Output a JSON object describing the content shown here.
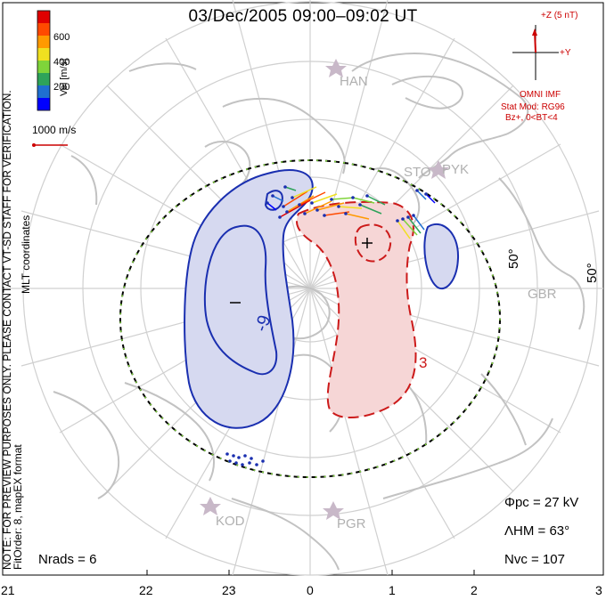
{
  "title": "03/Dec/2005 09:00–09:02 UT",
  "coordinates_label": "MLT coordinates",
  "colorbar": {
    "label": "Vel [m/s]",
    "ticks": [
      "600",
      "400",
      "200"
    ],
    "colors": [
      "#0000ff",
      "#1f6fd0",
      "#2ea35a",
      "#7fd43a",
      "#f0e020",
      "#ff9a00",
      "#ff4a00",
      "#e00000"
    ]
  },
  "reference_vector": {
    "label": "1000 m/s",
    "color": "#cc0000"
  },
  "mlt_labels": [
    "21",
    "22",
    "23",
    "0",
    "1",
    "2",
    "3"
  ],
  "latitude_labels": [
    "50°",
    "50°"
  ],
  "stations": [
    "HAN",
    "STO",
    "PYK",
    "GBR",
    "KOD",
    "PGR"
  ],
  "imf_panel": {
    "bz_label": "+Z (5 nT)",
    "by_label": "+Y",
    "source": "OMNI IMF",
    "model": "Stat Mod: RG96",
    "condition": "Bz+, 0<BT<4"
  },
  "contour_labels": {
    "negative": "-9",
    "positive": "3",
    "min_marker": "−",
    "max_marker": "+"
  },
  "stats": {
    "phi_pc": "Φpc = 27 kV",
    "lambda_hm": "ΛHM = 63°",
    "n_vc": "Nvc = 107",
    "n_rads": "Nrads = 6"
  },
  "note": "NOTE: FOR PREVIEW PURPOSES ONLY. PLEASE CONTACT VT-SD STAFF FOR VERIFICATION.",
  "fit_order": "FitOrder: 8, mapEX format",
  "colors": {
    "contour_neg": "#1a2fb0",
    "contour_pos": "#cc1a1a",
    "fill_neg": "#d6d9f0",
    "fill_pos": "#f6d6d6",
    "land": "#c8c8c8",
    "grid": "#d0d0d0"
  }
}
